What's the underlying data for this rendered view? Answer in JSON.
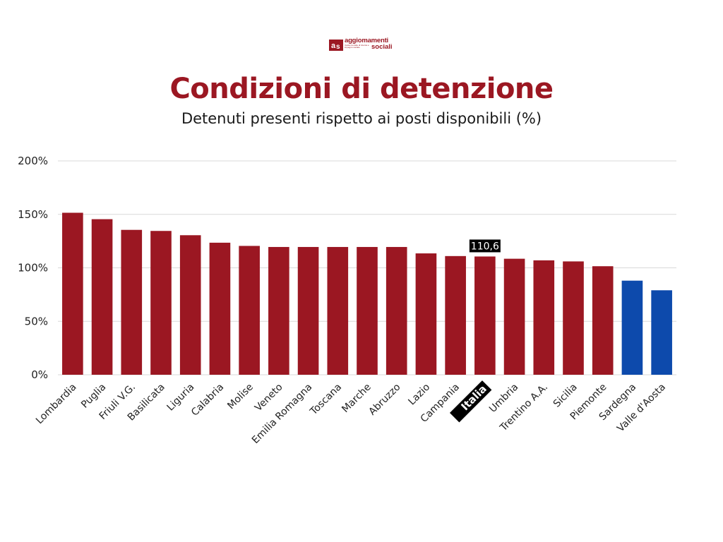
{
  "logo": {
    "line1": "aggiomamenti",
    "line2": "sociali",
    "small": "rivista mensile di ricerca e impegno sociale"
  },
  "chart_data": {
    "type": "bar",
    "title": "Condizioni di detenzione",
    "subtitle": "Detenuti presenti rispetto ai posti disponibili (%)",
    "categories": [
      "Lombardia",
      "Puglia",
      "Friuli V.G.",
      "Basilicata",
      "Liguria",
      "Calabria",
      "Molise",
      "Veneto",
      "Emilia Romagna",
      "Toscana",
      "Marche",
      "Abruzzo",
      "Lazio",
      "Campania",
      "Italia",
      "Umbria",
      "Trentino A.A.",
      "Sicilia",
      "Piemonte",
      "Sardegna",
      "Valle d'Aosta"
    ],
    "values": [
      151.5,
      145.5,
      135.5,
      134.5,
      130.5,
      123.5,
      120.5,
      119.5,
      119.5,
      119.5,
      119.5,
      119.5,
      113.5,
      111,
      110.6,
      108.5,
      107,
      106,
      101.5,
      88,
      79
    ],
    "bar_colors": [
      "#9b1722",
      "#9b1722",
      "#9b1722",
      "#9b1722",
      "#9b1722",
      "#9b1722",
      "#9b1722",
      "#9b1722",
      "#9b1722",
      "#9b1722",
      "#9b1722",
      "#9b1722",
      "#9b1722",
      "#9b1722",
      "#9b1722",
      "#9b1722",
      "#9b1722",
      "#9b1722",
      "#9b1722",
      "#0d4aac",
      "#0d4aac"
    ],
    "highlight": {
      "category": "Italia",
      "label": "110,6"
    },
    "yticks": [
      "0%",
      "50%",
      "100%",
      "150%",
      "200%"
    ],
    "ylim": [
      0,
      200
    ],
    "grid": true,
    "colors": {
      "accent": "#9b1722",
      "below_capacity": "#0d4aac",
      "highlight_bg": "#000000",
      "grid": "#d9d9d9"
    }
  }
}
